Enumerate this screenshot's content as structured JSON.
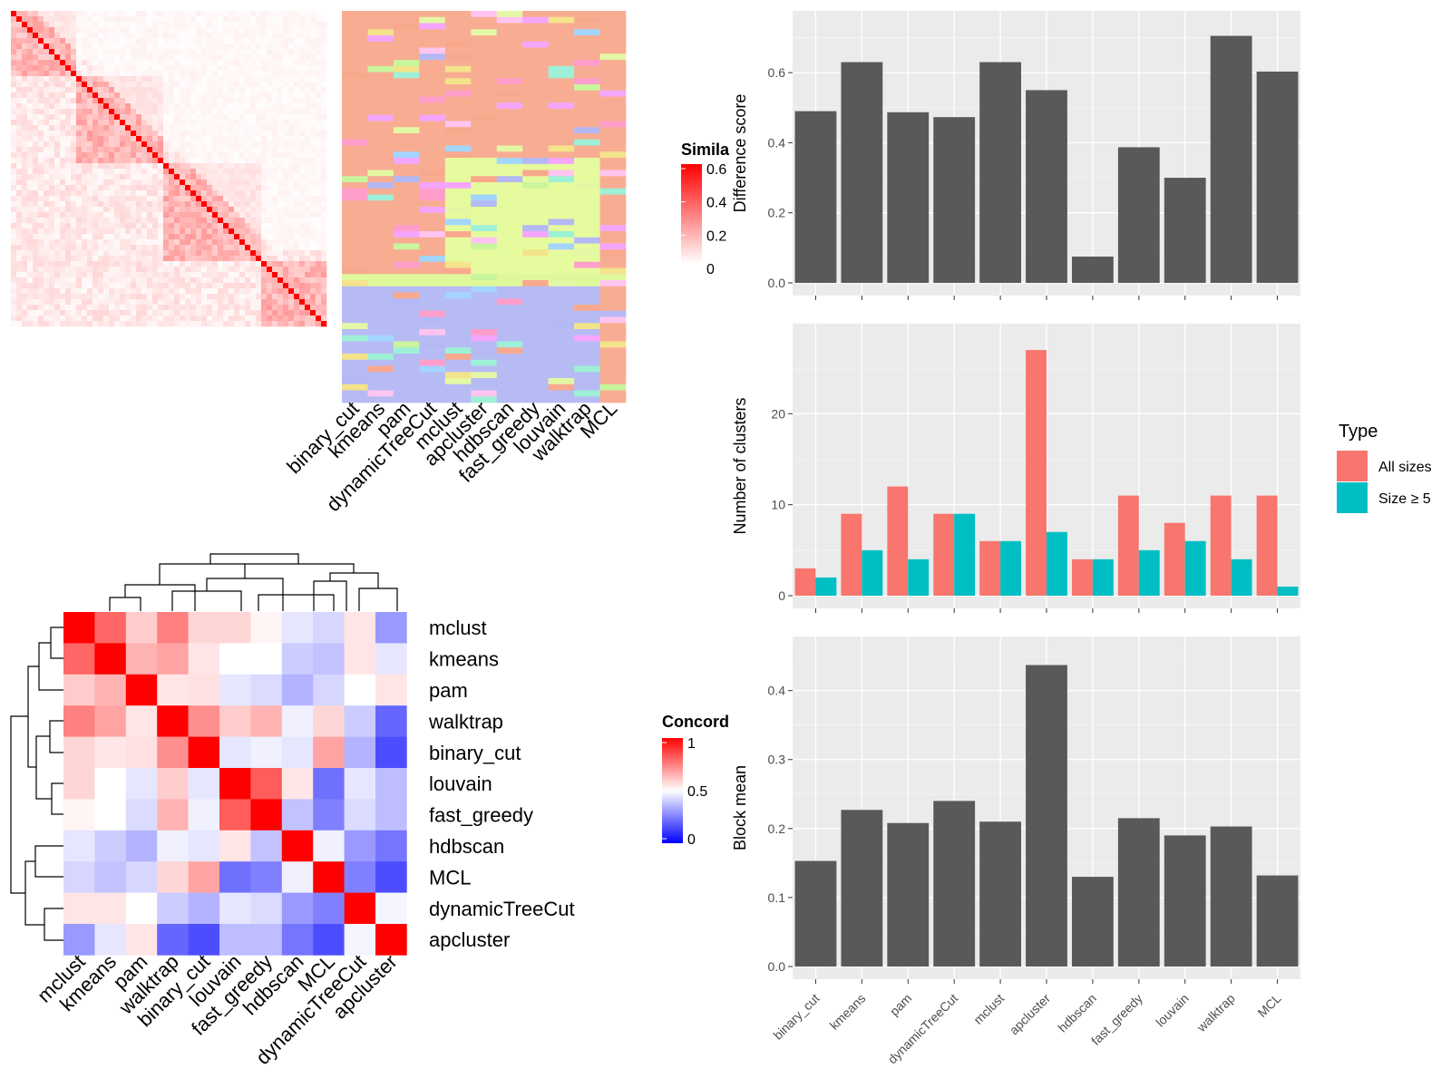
{
  "chart_data": [
    {
      "type": "heatmap",
      "name": "similarity-heatmap",
      "legend_title": "Simila",
      "legend_ticks": [
        "0.6",
        "0.4",
        "0.2",
        "0"
      ],
      "color_low": "#ffffff",
      "color_high": "#ff0000",
      "annotation_columns": [
        "binary_cut",
        "kmeans",
        "pam",
        "dynamicTreeCut",
        "mclust",
        "apcluster",
        "hdbscan",
        "fast_greedy",
        "louvain",
        "walktrap",
        "MCL"
      ]
    },
    {
      "type": "heatmap",
      "name": "concordance-heatmap",
      "legend_title": "Concord",
      "legend_ticks": [
        "1",
        "0.5",
        "0"
      ],
      "color_low": "#0000ff",
      "color_mid": "#ffffff",
      "color_high": "#ff0000",
      "rows": [
        "mclust",
        "kmeans",
        "pam",
        "walktrap",
        "binary_cut",
        "louvain",
        "fast_greedy",
        "hdbscan",
        "MCL",
        "dynamicTreeCut",
        "apcluster"
      ],
      "columns": [
        "mclust",
        "kmeans",
        "pam",
        "walktrap",
        "binary_cut",
        "louvain",
        "fast_greedy",
        "hdbscan",
        "MCL",
        "dynamicTreeCut",
        "apcluster"
      ],
      "values": [
        [
          1.0,
          0.8,
          0.6,
          0.75,
          0.58,
          0.58,
          0.52,
          0.45,
          0.42,
          0.55,
          0.3
        ],
        [
          0.8,
          1.0,
          0.65,
          0.68,
          0.55,
          0.5,
          0.5,
          0.4,
          0.38,
          0.55,
          0.45
        ],
        [
          0.6,
          0.65,
          1.0,
          0.55,
          0.56,
          0.45,
          0.43,
          0.35,
          0.42,
          0.5,
          0.55
        ],
        [
          0.75,
          0.68,
          0.55,
          1.0,
          0.72,
          0.6,
          0.65,
          0.47,
          0.58,
          0.4,
          0.2
        ],
        [
          0.58,
          0.55,
          0.56,
          0.72,
          1.0,
          0.45,
          0.47,
          0.45,
          0.68,
          0.35,
          0.15
        ],
        [
          0.58,
          0.5,
          0.45,
          0.6,
          0.45,
          1.0,
          0.82,
          0.55,
          0.22,
          0.45,
          0.37
        ],
        [
          0.52,
          0.5,
          0.43,
          0.65,
          0.47,
          0.82,
          1.0,
          0.38,
          0.25,
          0.43,
          0.37
        ],
        [
          0.45,
          0.4,
          0.35,
          0.47,
          0.45,
          0.55,
          0.38,
          1.0,
          0.47,
          0.3,
          0.23
        ],
        [
          0.42,
          0.38,
          0.42,
          0.58,
          0.68,
          0.22,
          0.25,
          0.47,
          1.0,
          0.25,
          0.15
        ],
        [
          0.55,
          0.55,
          0.5,
          0.4,
          0.35,
          0.45,
          0.43,
          0.3,
          0.25,
          1.0,
          0.48
        ],
        [
          0.3,
          0.45,
          0.55,
          0.2,
          0.15,
          0.37,
          0.37,
          0.23,
          0.15,
          0.48,
          1.0
        ]
      ]
    },
    {
      "type": "bar",
      "name": "difference-score",
      "categories": [
        "binary_cut",
        "kmeans",
        "pam",
        "dynamicTreeCut",
        "mclust",
        "apcluster",
        "hdbscan",
        "fast_greedy",
        "louvain",
        "walktrap",
        "MCL"
      ],
      "values": [
        0.49,
        0.63,
        0.487,
        0.473,
        0.63,
        0.55,
        0.075,
        0.387,
        0.3,
        0.705,
        0.603
      ],
      "ylabel": "Difference score",
      "yticks": [
        "0.0",
        "0.2",
        "0.4",
        "0.6"
      ],
      "ylim": [
        0,
        0.74
      ],
      "bar_color": "#595959",
      "panel_bg": "#ebebeb"
    },
    {
      "type": "bar",
      "name": "number-of-clusters",
      "categories": [
        "binary_cut",
        "kmeans",
        "pam",
        "dynamicTreeCut",
        "mclust",
        "apcluster",
        "hdbscan",
        "fast_greedy",
        "louvain",
        "walktrap",
        "MCL"
      ],
      "series": [
        {
          "name": "All sizes",
          "color": "#f8766d",
          "values": [
            3,
            9,
            12,
            9,
            6,
            27,
            4,
            11,
            8,
            11,
            11
          ]
        },
        {
          "name": "Size ≥ 5",
          "color": "#00bfc4",
          "values": [
            2,
            5,
            4,
            9,
            6,
            7,
            4,
            5,
            6,
            4,
            1
          ]
        }
      ],
      "ylabel": "Number of clusters",
      "yticks": [
        "0",
        "10",
        "20"
      ],
      "ylim": [
        0,
        28.5
      ],
      "legend_title": "Type",
      "legend_position": "right",
      "panel_bg": "#ebebeb"
    },
    {
      "type": "bar",
      "name": "block-mean",
      "categories": [
        "binary_cut",
        "kmeans",
        "pam",
        "dynamicTreeCut",
        "mclust",
        "apcluster",
        "hdbscan",
        "fast_greedy",
        "louvain",
        "walktrap",
        "MCL"
      ],
      "values": [
        0.153,
        0.227,
        0.208,
        0.24,
        0.21,
        0.437,
        0.13,
        0.215,
        0.19,
        0.203,
        0.132
      ],
      "ylabel": "Block mean",
      "yticks": [
        "0.0",
        "0.1",
        "0.2",
        "0.3",
        "0.4"
      ],
      "ylim": [
        0,
        0.46
      ],
      "bar_color": "#595959",
      "panel_bg": "#ebebeb"
    }
  ]
}
